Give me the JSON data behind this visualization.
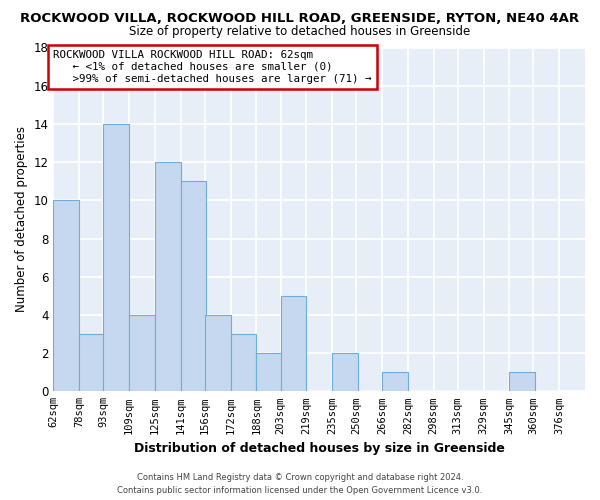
{
  "title_line1": "ROCKWOOD VILLA, ROCKWOOD HILL ROAD, GREENSIDE, RYTON, NE40 4AR",
  "title_line2": "Size of property relative to detached houses in Greenside",
  "xlabel": "Distribution of detached houses by size in Greenside",
  "ylabel": "Number of detached properties",
  "bin_labels": [
    "62sqm",
    "78sqm",
    "93sqm",
    "109sqm",
    "125sqm",
    "141sqm",
    "156sqm",
    "172sqm",
    "188sqm",
    "203sqm",
    "219sqm",
    "235sqm",
    "250sqm",
    "266sqm",
    "282sqm",
    "298sqm",
    "313sqm",
    "329sqm",
    "345sqm",
    "360sqm",
    "376sqm"
  ],
  "bin_edges": [
    62,
    78,
    93,
    109,
    125,
    141,
    156,
    172,
    188,
    203,
    219,
    235,
    250,
    266,
    282,
    298,
    313,
    329,
    345,
    360,
    376
  ],
  "counts": [
    10,
    3,
    14,
    4,
    12,
    11,
    4,
    3,
    2,
    5,
    0,
    2,
    0,
    1,
    0,
    0,
    0,
    0,
    1,
    0
  ],
  "bar_color": "#c5d8f0",
  "bar_edge_color": "#6baed6",
  "annotation_box_color": "#ffffff",
  "annotation_border_color": "#cc0000",
  "annotation_line1": "ROCKWOOD VILLA ROCKWOOD HILL ROAD: 62sqm",
  "annotation_line2": "← <1% of detached houses are smaller (0)",
  "annotation_line3": ">99% of semi-detached houses are larger (71) →",
  "ylim": [
    0,
    18
  ],
  "yticks": [
    0,
    2,
    4,
    6,
    8,
    10,
    12,
    14,
    16,
    18
  ],
  "footer_line1": "Contains HM Land Registry data © Crown copyright and database right 2024.",
  "footer_line2": "Contains public sector information licensed under the Open Government Licence v3.0.",
  "background_color": "#e8eef7",
  "grid_color": "#ffffff"
}
